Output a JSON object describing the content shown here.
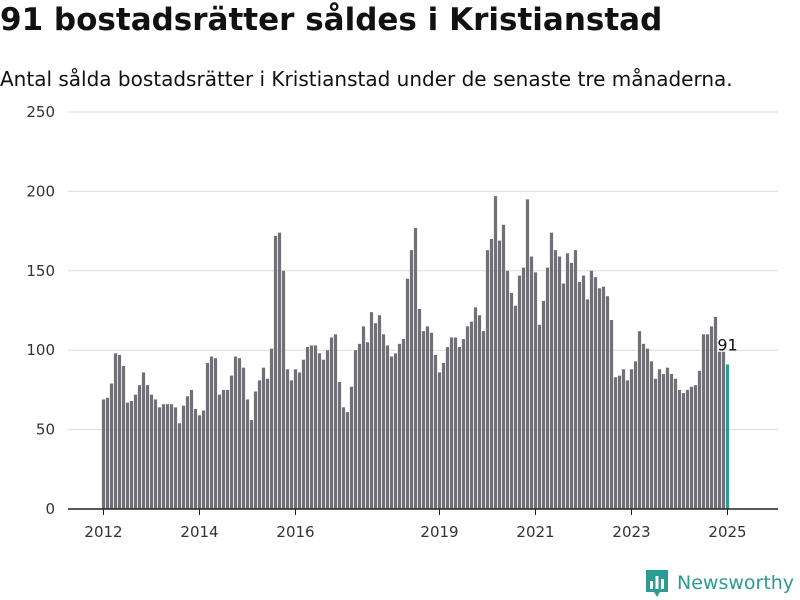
{
  "title": "91 bostadsrätter såldes i Kristianstad",
  "subtitle": "Antal sålda bostadsrätter i Kristianstad under de senaste tre månaderna.",
  "brand": {
    "name": "Newsworthy",
    "icon": "newsworthy-logo-icon",
    "color": "#2c9b91"
  },
  "chart_data": {
    "type": "bar",
    "title": "91 bostadsrätter såldes i Kristianstad",
    "subtitle": "Antal sålda bostadsrätter i Kristianstad under de senaste tre månaderna.",
    "xlabel": "",
    "ylabel": "",
    "ylim": [
      0,
      250
    ],
    "y_ticks": [
      0,
      50,
      100,
      150,
      200,
      250
    ],
    "x_ticks": [
      "2012",
      "2014",
      "2016",
      "2019",
      "2021",
      "2023",
      "2025"
    ],
    "grid": true,
    "bar_color": "#707076",
    "highlight_color": "#2c9b91",
    "highlight_label": "91",
    "start": "2012-01",
    "frequency": "monthly, rolling three-month total",
    "values": [
      69,
      70,
      79,
      98,
      97,
      90,
      67,
      68,
      72,
      78,
      86,
      78,
      72,
      69,
      64,
      66,
      66,
      66,
      64,
      54,
      65,
      71,
      75,
      63,
      59,
      62,
      92,
      96,
      95,
      72,
      75,
      75,
      84,
      96,
      95,
      89,
      69,
      56,
      74,
      81,
      89,
      82,
      101,
      172,
      174,
      150,
      88,
      81,
      88,
      86,
      94,
      102,
      103,
      103,
      98,
      94,
      100,
      108,
      110,
      80,
      64,
      61,
      77,
      100,
      104,
      115,
      105,
      124,
      117,
      122,
      110,
      103,
      96,
      98,
      104,
      107,
      145,
      163,
      177,
      126,
      112,
      115,
      111,
      97,
      86,
      92,
      102,
      108,
      108,
      102,
      107,
      115,
      118,
      127,
      122,
      112,
      163,
      170,
      197,
      169,
      179,
      150,
      136,
      128,
      147,
      152,
      195,
      159,
      149,
      116,
      131,
      152,
      174,
      163,
      159,
      142,
      161,
      155,
      163,
      143,
      147,
      132,
      150,
      146,
      139,
      140,
      134,
      119,
      83,
      84,
      88,
      81,
      88,
      93,
      112,
      104,
      101,
      93,
      82,
      88,
      85,
      89,
      85,
      82,
      75,
      73,
      75,
      77,
      78,
      87,
      110,
      110,
      115,
      121,
      99,
      99,
      91
    ]
  }
}
